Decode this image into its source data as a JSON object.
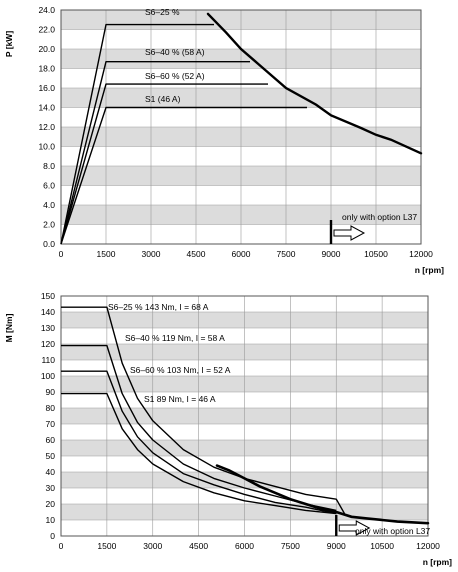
{
  "chart_data": [
    {
      "type": "line",
      "title": "",
      "xlabel": "n [rpm]",
      "ylabel": "P [kW]",
      "xlim": [
        0,
        12000
      ],
      "ylim": [
        0,
        24
      ],
      "xticks": [
        0,
        1500,
        3000,
        4500,
        6000,
        7500,
        9000,
        10500,
        12000
      ],
      "yticks": [
        "0.0",
        "2.0",
        "4.0",
        "6.0",
        "8.0",
        "10.0",
        "12.0",
        "14.0",
        "16.0",
        "18.0",
        "20.0",
        "22.0",
        "24.0"
      ],
      "grid": true,
      "series": [
        {
          "name": "S6–25 %",
          "points": [
            [
              0,
              0
            ],
            [
              1500,
              22.5
            ],
            [
              5100,
              22.5
            ]
          ]
        },
        {
          "name": "S6–40 %  (58 A)",
          "points": [
            [
              0,
              0
            ],
            [
              1500,
              18.7
            ],
            [
              6300,
              18.7
            ]
          ]
        },
        {
          "name": "S6–60 %  (52 A)",
          "points": [
            [
              0,
              0
            ],
            [
              1500,
              16.4
            ],
            [
              6900,
              16.4
            ]
          ]
        },
        {
          "name": "S1  (46 A)",
          "points": [
            [
              0,
              0
            ],
            [
              1500,
              14.0
            ],
            [
              8200,
              14.0
            ]
          ]
        }
      ],
      "limit_curve": [
        [
          4900,
          23.6
        ],
        [
          5500,
          21.7
        ],
        [
          6000,
          20.0
        ],
        [
          6600,
          18.4
        ],
        [
          7500,
          16.0
        ],
        [
          8500,
          14.3
        ],
        [
          9000,
          13.2
        ],
        [
          10000,
          11.9
        ],
        [
          10500,
          11.2
        ],
        [
          11000,
          10.7
        ],
        [
          12000,
          9.3
        ]
      ],
      "annotations": [
        "only with option L37"
      ],
      "marker_x": 9000
    },
    {
      "type": "line",
      "title": "",
      "xlabel": "n [rpm]",
      "ylabel": "M [Nm]",
      "xlim": [
        0,
        12000
      ],
      "ylim": [
        0,
        150
      ],
      "xticks": [
        0,
        1500,
        3000,
        4500,
        6000,
        7500,
        9000,
        10500,
        12000
      ],
      "yticks": [
        0,
        10,
        20,
        30,
        40,
        50,
        60,
        70,
        80,
        90,
        100,
        110,
        120,
        130,
        140,
        150
      ],
      "grid": true,
      "series": [
        {
          "name": "S6–25 %  143 Nm, I = 68 A",
          "points": [
            [
              0,
              143
            ],
            [
              1500,
              143
            ],
            [
              2000,
              108
            ],
            [
              2500,
              86
            ],
            [
              3000,
              72
            ],
            [
              4000,
              54
            ],
            [
              5000,
              43
            ],
            [
              6000,
              36
            ],
            [
              7000,
              31
            ],
            [
              8000,
              26
            ],
            [
              9000,
              23
            ],
            [
              9300,
              13
            ]
          ]
        },
        {
          "name": "S6–40 %  119 Nm, I = 58 A",
          "points": [
            [
              0,
              119
            ],
            [
              1500,
              119
            ],
            [
              2000,
              89
            ],
            [
              2500,
              71
            ],
            [
              3000,
              60
            ],
            [
              4000,
              45
            ],
            [
              5000,
              36
            ],
            [
              6000,
              30
            ],
            [
              7000,
              25
            ],
            [
              8000,
              20
            ],
            [
              9000,
              16
            ]
          ]
        },
        {
          "name": "S6–60 %  103 Nm, I = 52 A",
          "points": [
            [
              0,
              103
            ],
            [
              1500,
              103
            ],
            [
              2000,
              78
            ],
            [
              2500,
              62
            ],
            [
              3000,
              52
            ],
            [
              4000,
              39
            ],
            [
              5000,
              32
            ],
            [
              6000,
              26
            ],
            [
              7000,
              21
            ],
            [
              8000,
              18
            ],
            [
              9000,
              14
            ]
          ]
        },
        {
          "name": "S1  89 Nm, I = 46 A",
          "points": [
            [
              0,
              89
            ],
            [
              1500,
              89
            ],
            [
              2000,
              67
            ],
            [
              2500,
              54
            ],
            [
              3000,
              45
            ],
            [
              4000,
              34
            ],
            [
              5000,
              27
            ],
            [
              6000,
              22
            ],
            [
              7000,
              19
            ],
            [
              8000,
              16
            ],
            [
              9000,
              14
            ]
          ]
        }
      ],
      "limit_curve": [
        [
          5100,
          44
        ],
        [
          5500,
          41
        ],
        [
          6000,
          36
        ],
        [
          6500,
          31
        ],
        [
          7000,
          27
        ],
        [
          7500,
          23
        ],
        [
          8000,
          20
        ],
        [
          8500,
          17
        ],
        [
          9000,
          15
        ],
        [
          9500,
          12
        ],
        [
          10000,
          11
        ],
        [
          10500,
          10
        ],
        [
          11000,
          9
        ],
        [
          12000,
          8
        ]
      ],
      "annotations": [
        "only with option L37"
      ],
      "marker_x": 9000
    }
  ]
}
